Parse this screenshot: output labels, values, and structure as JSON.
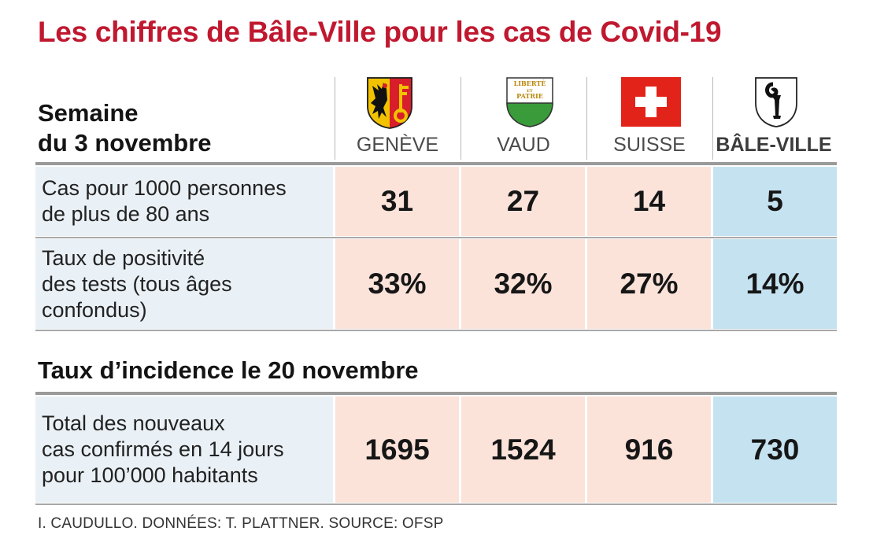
{
  "chart_data": {
    "type": "table",
    "title": "Les chiffres de Bâle-Ville pour les cas de Covid-19",
    "columns": [
      "GENÈVE",
      "VAUD",
      "SUISSE",
      "BÂLE-VILLE"
    ],
    "section1": {
      "heading_line1": "Semaine",
      "heading_line2": "du 3 novembre",
      "rows": [
        {
          "label_lines": [
            "Cas pour 1000 personnes",
            "de plus de 80 ans"
          ],
          "values": [
            "31",
            "27",
            "14",
            "5"
          ]
        },
        {
          "label_lines": [
            "Taux de positivité",
            "des tests (tous âges",
            "confondus)"
          ],
          "values": [
            "33%",
            "32%",
            "27%",
            "14%"
          ]
        }
      ]
    },
    "section2": {
      "heading": "Taux d’incidence le 20 novembre",
      "rows": [
        {
          "label_lines": [
            "Total des nouveaux",
            "cas confirmés en 14 jours",
            "pour 100’000 habitants"
          ],
          "values": [
            "1695",
            "1524",
            "916",
            "730"
          ]
        }
      ]
    },
    "credit": "I. CAUDULLO. DONNÉES: T. PLATTNER. SOURCE: OFSP"
  },
  "colors": {
    "title": "#c0182f",
    "cell_pink": "#fbe3da",
    "cell_blue": "#c5e2f1",
    "label_bg": "#eaf1f6",
    "swiss_red": "#e2231a"
  },
  "icons": [
    "geneve-coat-of-arms-icon",
    "vaud-coat-of-arms-icon",
    "swiss-flag-icon",
    "basel-coat-of-arms-icon"
  ],
  "vaud_crest_text": [
    "LIBERTÉ",
    "ET",
    "PATRIE"
  ]
}
